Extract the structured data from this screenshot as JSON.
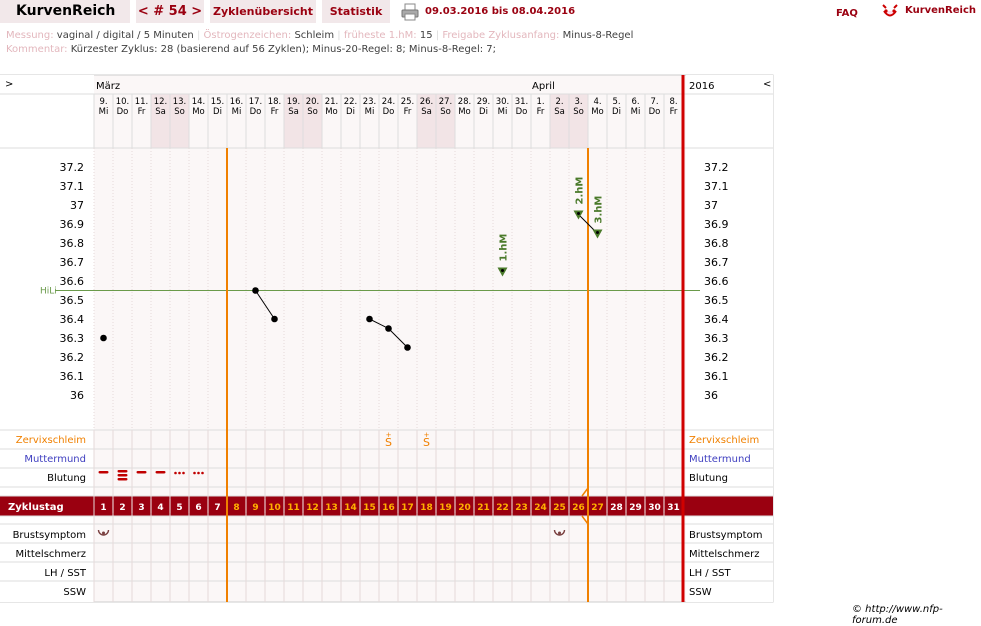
{
  "brand": "KurvenReich",
  "nav": {
    "cycle_label": "< # 54 >",
    "overview_label": "Zyklenübersicht",
    "stats_label": "Statistik",
    "date_range": "09.03.2016 bis 08.04.2016",
    "faq_label": "FAQ",
    "logo_text": "KurvenReich"
  },
  "info": {
    "messung_label": "Messung:",
    "messung_value": "vaginal / digital / 5 Minuten",
    "oestrogen_label": "Östrogenzeichen:",
    "oestrogen_value": "Schleim",
    "hm_label": "früheste 1.hM:",
    "hm_value": "15",
    "freigabe_label": "Freigabe Zyklusanfang:",
    "freigabe_value": "Minus-8-Regel",
    "kommentar_label": "Kommentar:",
    "kommentar_value": "Kürzester Zyklus: 28 (basierend auf 56 Zyklen);  Minus-20-Regel: 8; Minus-8-Regel: 7;"
  },
  "chart_header": {
    "prev": ">",
    "next": "<",
    "month1": "März",
    "month2": "April",
    "year": "2016"
  },
  "days": [
    {
      "d": "9.",
      "w": "Mi"
    },
    {
      "d": "10.",
      "w": "Do"
    },
    {
      "d": "11.",
      "w": "Fr"
    },
    {
      "d": "12.",
      "w": "Sa"
    },
    {
      "d": "13.",
      "w": "So"
    },
    {
      "d": "14.",
      "w": "Mo"
    },
    {
      "d": "15.",
      "w": "Di"
    },
    {
      "d": "16.",
      "w": "Mi"
    },
    {
      "d": "17.",
      "w": "Do"
    },
    {
      "d": "18.",
      "w": "Fr"
    },
    {
      "d": "19.",
      "w": "Sa"
    },
    {
      "d": "20.",
      "w": "So"
    },
    {
      "d": "21.",
      "w": "Mo"
    },
    {
      "d": "22.",
      "w": "Di"
    },
    {
      "d": "23.",
      "w": "Mi"
    },
    {
      "d": "24.",
      "w": "Do"
    },
    {
      "d": "25.",
      "w": "Fr"
    },
    {
      "d": "26.",
      "w": "Sa"
    },
    {
      "d": "27.",
      "w": "So"
    },
    {
      "d": "28.",
      "w": "Mo"
    },
    {
      "d": "29.",
      "w": "Di"
    },
    {
      "d": "30.",
      "w": "Mi"
    },
    {
      "d": "31.",
      "w": "Do"
    },
    {
      "d": "1.",
      "w": "Fr"
    },
    {
      "d": "2.",
      "w": "Sa"
    },
    {
      "d": "3.",
      "w": "So"
    },
    {
      "d": "4.",
      "w": "Mo"
    },
    {
      "d": "5.",
      "w": "Di"
    },
    {
      "d": "6.",
      "w": "Mi"
    },
    {
      "d": "7.",
      "w": "Do"
    },
    {
      "d": "8.",
      "w": "Fr"
    }
  ],
  "weekend_indices": [
    3,
    4,
    10,
    11,
    17,
    18,
    24,
    25
  ],
  "temp_ticks": [
    "37.2",
    "37.1",
    "37",
    "36.9",
    "36.8",
    "36.7",
    "36.6",
    "36.5",
    "36.4",
    "36.3",
    "36.2",
    "36.1",
    "36"
  ],
  "hili_label": "HiLi",
  "hili_value": 36.55,
  "temperatures": [
    {
      "day": 1,
      "t": 36.3
    },
    {
      "day": 9,
      "t": 36.55
    },
    {
      "day": 10,
      "t": 36.4
    },
    {
      "day": 15,
      "t": 36.4
    },
    {
      "day": 16,
      "t": 36.35
    },
    {
      "day": 17,
      "t": 36.25
    }
  ],
  "markers": [
    {
      "day": 22,
      "t": 36.65,
      "label": "1.hM"
    },
    {
      "day": 26,
      "t": 36.95,
      "label": "2.hM"
    },
    {
      "day": 27,
      "t": 36.85,
      "label": "3.hM"
    }
  ],
  "marker_line": [
    26,
    27
  ],
  "rows": {
    "zervix": "Zervixschleim",
    "muttermund": "Muttermund",
    "blutung": "Blutung",
    "zyklustag": "Zyklustag",
    "brust": "Brustsymptom",
    "mittel": "Mittelschmerz",
    "lh": "LH / SST",
    "ssw": "SSW"
  },
  "zervix_marks": [
    {
      "day": 16,
      "symbol": "S"
    },
    {
      "day": 18,
      "symbol": "S"
    }
  ],
  "bleeding": [
    {
      "day": 1,
      "level": "medium"
    },
    {
      "day": 2,
      "level": "heavy"
    },
    {
      "day": 3,
      "level": "medium"
    },
    {
      "day": 4,
      "level": "medium"
    },
    {
      "day": 5,
      "level": "spotting"
    },
    {
      "day": 6,
      "level": "spotting"
    }
  ],
  "brust_days": [
    1,
    25
  ],
  "cycle_days": [
    "1",
    "2",
    "3",
    "4",
    "5",
    "6",
    "7",
    "8",
    "9",
    "10",
    "11",
    "12",
    "13",
    "14",
    "15",
    "16",
    "17",
    "18",
    "19",
    "20",
    "21",
    "22",
    "23",
    "24",
    "25",
    "26",
    "27",
    "28",
    "29",
    "30",
    "31"
  ],
  "footer": "© http://www.nfp-forum.de",
  "colors": {
    "accent": "#9a0010",
    "orange": "#f08000",
    "green_marker": "#4a7a2a",
    "muttermund": "#4040c0",
    "weekend": "#f2e4e6",
    "chart_bg": "#fbf7f7",
    "red_line": "#d00000"
  }
}
